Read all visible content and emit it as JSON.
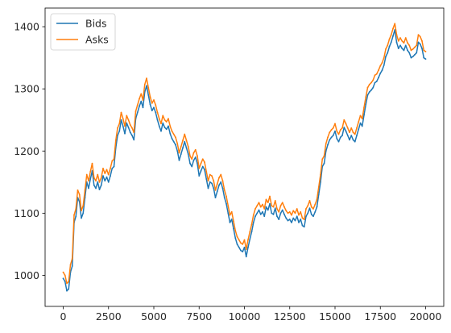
{
  "chart_data": {
    "type": "line",
    "title": "",
    "xlabel": "",
    "ylabel": "",
    "xlim": [
      -1000,
      21000
    ],
    "ylim": [
      950,
      1430
    ],
    "xticks": [
      0,
      2500,
      5000,
      7500,
      10000,
      12500,
      15000,
      17500,
      20000
    ],
    "xtick_labels": [
      "0",
      "2500",
      "5000",
      "7500",
      "10000",
      "12500",
      "15000",
      "17500",
      "20000"
    ],
    "yticks": [
      1000,
      1100,
      1200,
      1300,
      1400
    ],
    "ytick_labels": [
      "1000",
      "1100",
      "1200",
      "1300",
      "1400"
    ],
    "grid": false,
    "legend": {
      "position": "upper-left",
      "entries": [
        "Bids",
        "Asks"
      ]
    },
    "x": [
      0,
      100,
      200,
      300,
      400,
      500,
      600,
      700,
      800,
      900,
      1000,
      1100,
      1200,
      1300,
      1400,
      1500,
      1600,
      1700,
      1800,
      1900,
      2000,
      2100,
      2200,
      2300,
      2400,
      2500,
      2600,
      2700,
      2800,
      2900,
      3000,
      3100,
      3200,
      3300,
      3400,
      3500,
      3600,
      3700,
      3800,
      3900,
      4000,
      4100,
      4200,
      4300,
      4400,
      4500,
      4600,
      4700,
      4800,
      4900,
      5000,
      5100,
      5200,
      5300,
      5400,
      5500,
      5600,
      5700,
      5800,
      5900,
      6000,
      6100,
      6200,
      6300,
      6400,
      6500,
      6600,
      6700,
      6800,
      6900,
      7000,
      7100,
      7200,
      7300,
      7400,
      7500,
      7600,
      7700,
      7800,
      7900,
      8000,
      8100,
      8200,
      8300,
      8400,
      8500,
      8600,
      8700,
      8800,
      8900,
      9000,
      9100,
      9200,
      9300,
      9400,
      9500,
      9600,
      9700,
      9800,
      9900,
      10000,
      10100,
      10200,
      10300,
      10400,
      10500,
      10600,
      10700,
      10800,
      10900,
      11000,
      11100,
      11200,
      11300,
      11400,
      11500,
      11600,
      11700,
      11800,
      11900,
      12000,
      12100,
      12200,
      12300,
      12400,
      12500,
      12600,
      12700,
      12800,
      12900,
      13000,
      13100,
      13200,
      13300,
      13400,
      13500,
      13600,
      13700,
      13800,
      13900,
      14000,
      14100,
      14200,
      14300,
      14400,
      14500,
      14600,
      14700,
      14800,
      14900,
      15000,
      15100,
      15200,
      15300,
      15400,
      15500,
      15600,
      15700,
      15800,
      15900,
      16000,
      16100,
      16200,
      16300,
      16400,
      16500,
      16600,
      16700,
      16800,
      16900,
      17000,
      17100,
      17200,
      17300,
      17400,
      17500,
      17600,
      17700,
      17800,
      17900,
      18000,
      18100,
      18200,
      18300,
      18400,
      18500,
      18600,
      18700,
      18800,
      18900,
      19000,
      19100,
      19200,
      19300,
      19400,
      19500,
      19600,
      19700,
      19800,
      19900,
      20000
    ],
    "series": [
      {
        "name": "Bids",
        "color": "#1f77b4",
        "values": [
          995,
          990,
          975,
          978,
          1005,
          1015,
          1085,
          1095,
          1125,
          1118,
          1092,
          1100,
          1125,
          1150,
          1140,
          1155,
          1168,
          1145,
          1140,
          1150,
          1138,
          1145,
          1160,
          1152,
          1158,
          1150,
          1160,
          1172,
          1175,
          1205,
          1225,
          1232,
          1250,
          1240,
          1228,
          1245,
          1238,
          1230,
          1225,
          1218,
          1252,
          1262,
          1272,
          1280,
          1270,
          1295,
          1305,
          1290,
          1275,
          1265,
          1270,
          1262,
          1250,
          1240,
          1232,
          1245,
          1238,
          1235,
          1240,
          1228,
          1220,
          1215,
          1210,
          1200,
          1185,
          1195,
          1205,
          1215,
          1205,
          1195,
          1180,
          1175,
          1185,
          1190,
          1180,
          1160,
          1168,
          1175,
          1170,
          1155,
          1140,
          1150,
          1148,
          1140,
          1125,
          1135,
          1145,
          1150,
          1140,
          1125,
          1115,
          1100,
          1085,
          1090,
          1075,
          1060,
          1050,
          1045,
          1040,
          1038,
          1045,
          1030,
          1045,
          1058,
          1070,
          1085,
          1095,
          1100,
          1105,
          1098,
          1102,
          1095,
          1110,
          1105,
          1115,
          1100,
          1098,
          1108,
          1095,
          1090,
          1100,
          1105,
          1098,
          1092,
          1088,
          1090,
          1085,
          1092,
          1088,
          1095,
          1085,
          1090,
          1080,
          1078,
          1095,
          1100,
          1108,
          1098,
          1095,
          1102,
          1110,
          1130,
          1150,
          1175,
          1180,
          1200,
          1210,
          1218,
          1222,
          1225,
          1232,
          1220,
          1215,
          1222,
          1225,
          1238,
          1232,
          1225,
          1218,
          1225,
          1218,
          1215,
          1225,
          1235,
          1245,
          1240,
          1258,
          1275,
          1290,
          1295,
          1298,
          1302,
          1310,
          1312,
          1318,
          1325,
          1330,
          1338,
          1352,
          1358,
          1368,
          1375,
          1385,
          1395,
          1375,
          1365,
          1370,
          1365,
          1362,
          1370,
          1362,
          1358,
          1350,
          1352,
          1355,
          1358,
          1375,
          1372,
          1365,
          1350,
          1348
        ]
      },
      {
        "name": "Asks",
        "color": "#ff7f0e",
        "values": [
          1005,
          1000,
          987,
          990,
          1017,
          1027,
          1097,
          1107,
          1137,
          1130,
          1104,
          1112,
          1137,
          1162,
          1152,
          1167,
          1180,
          1157,
          1152,
          1162,
          1150,
          1157,
          1172,
          1164,
          1170,
          1162,
          1172,
          1184,
          1187,
          1217,
          1237,
          1244,
          1262,
          1252,
          1240,
          1257,
          1250,
          1242,
          1237,
          1230,
          1264,
          1274,
          1284,
          1292,
          1282,
          1307,
          1317,
          1302,
          1287,
          1277,
          1282,
          1274,
          1262,
          1252,
          1244,
          1257,
          1250,
          1247,
          1252,
          1240,
          1232,
          1227,
          1222,
          1212,
          1197,
          1207,
          1217,
          1227,
          1217,
          1207,
          1192,
          1187,
          1197,
          1202,
          1192,
          1172,
          1180,
          1187,
          1182,
          1167,
          1152,
          1162,
          1160,
          1152,
          1137,
          1147,
          1157,
          1162,
          1152,
          1137,
          1127,
          1112,
          1097,
          1102,
          1087,
          1072,
          1062,
          1057,
          1052,
          1050,
          1057,
          1042,
          1057,
          1070,
          1082,
          1097,
          1107,
          1112,
          1117,
          1110,
          1114,
          1107,
          1122,
          1117,
          1127,
          1112,
          1110,
          1120,
          1107,
          1102,
          1112,
          1117,
          1110,
          1104,
          1100,
          1102,
          1097,
          1104,
          1100,
          1107,
          1097,
          1102,
          1092,
          1090,
          1107,
          1112,
          1120,
          1110,
          1107,
          1114,
          1122,
          1142,
          1162,
          1187,
          1192,
          1212,
          1222,
          1230,
          1234,
          1237,
          1244,
          1232,
          1227,
          1234,
          1237,
          1250,
          1244,
          1237,
          1230,
          1237,
          1230,
          1227,
          1237,
          1247,
          1257,
          1252,
          1270,
          1287,
          1302,
          1307,
          1310,
          1314,
          1322,
          1324,
          1330,
          1337,
          1342,
          1350,
          1364,
          1370,
          1380,
          1387,
          1397,
          1405,
          1387,
          1377,
          1382,
          1377,
          1374,
          1382,
          1374,
          1370,
          1362,
          1364,
          1367,
          1370,
          1387,
          1384,
          1377,
          1362,
          1360
        ]
      }
    ]
  }
}
